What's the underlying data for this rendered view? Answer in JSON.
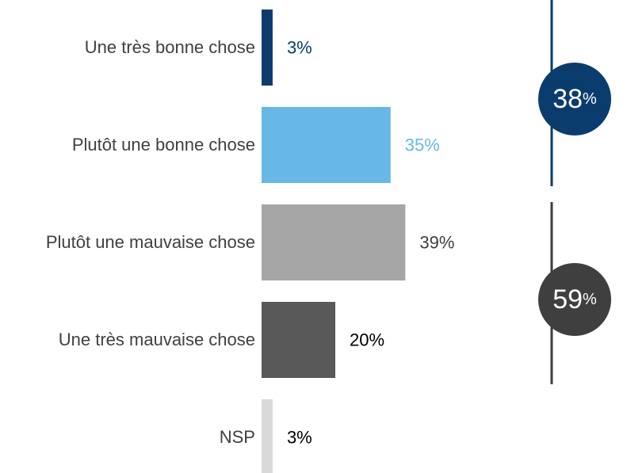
{
  "chart_data": {
    "type": "bar",
    "categories": [
      "Une très bonne chose",
      "Plutôt une bonne chose",
      "Plutôt une mauvaise chose",
      "Une très mauvaise chose",
      "NSP"
    ],
    "values": [
      3,
      35,
      39,
      20,
      3
    ],
    "value_labels": [
      "3%",
      "35%",
      "39%",
      "20%",
      "3%"
    ],
    "colors": [
      "#0b3c6e",
      "#67b8e6",
      "#a6a6a6",
      "#595959",
      "#d9d9d9"
    ],
    "label_colors": [
      "#0b3c6e",
      "#67b8e6",
      "#404040",
      "#000000",
      "#000000"
    ],
    "totals": [
      {
        "value": 38,
        "unit": "%",
        "color": "#0b3c6e"
      },
      {
        "value": 59,
        "unit": "%",
        "color": "#3f3f3f"
      }
    ]
  }
}
